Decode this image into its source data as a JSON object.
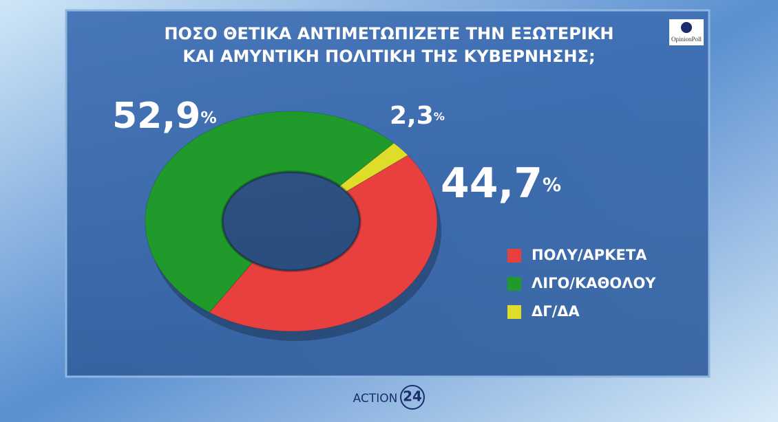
{
  "chart_data": {
    "type": "pie",
    "donut": true,
    "title": [
      "ΠΟΣΟ ΘΕΤΙΚΑ ΑΝΤΙΜΕΤΩΠΙΖΕΤΕ ΤΗΝ ΕΞΩΤΕΡΙΚΗ",
      "ΚΑΙ ΑΜΥΝΤΙΚΗ ΠΟΛΙΤΙΚΗ ΤΗΣ ΚΥΒΕΡΝΗΣΗΣ;"
    ],
    "categories": [
      "ΠΟΛΥ/ΑΡΚΕΤΑ",
      "ΛΙΓΟ/ΚΑΘΟΛΟΥ",
      "ΔΓ/ΔΑ"
    ],
    "values": [
      44.7,
      52.9,
      2.3
    ],
    "value_labels": [
      "44,7",
      "52,9",
      "2,3"
    ],
    "value_unit": "%",
    "colors": [
      "#e8403f",
      "#1f9a2b",
      "#dede2a"
    ]
  },
  "logo": "OpinionPoll",
  "footer": {
    "brand": "ACTION",
    "number": "24"
  }
}
